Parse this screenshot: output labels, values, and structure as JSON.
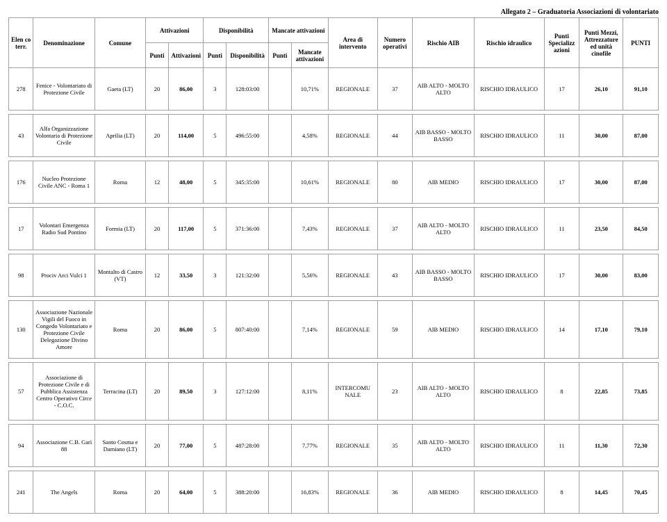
{
  "header_title": "Allegato 2 – Graduatoria Associazioni di volontariato",
  "columns": {
    "elen": "Elen\nco\nterr.",
    "denom": "Denominazione",
    "comune": "Comune",
    "attiv_group": "Attivazioni",
    "disp_group": "Disponibilità",
    "manc_group": "Mancate\nattivazioni",
    "pt1": "Punti",
    "attiv": "Attivazioni",
    "pt2": "Punti",
    "disp": "Disponibilità",
    "pt3": "Punti",
    "manc": "Mancate\nattivazioni",
    "area": "Area di\nintervento",
    "numop": "Numero\noperativi",
    "raib": "Rischio AIB",
    "ridr": "Rischio idraulico",
    "spec": "Punti\nSpecializz\nazioni",
    "mezz": "Punti Mezzi,\nAttrezzature\ned unità\ncinofile",
    "punti": "PUNTI"
  },
  "rows": [
    {
      "elen": "278",
      "denom": "Fenice - Volontariato di Protezione Civile",
      "comune": "Gaeta (LT)",
      "pt1": "20",
      "attiv": "86,00",
      "pt2": "3",
      "disp": "128:03:00",
      "pt3": "",
      "manc": "10,71%",
      "area": "REGIONALE",
      "numop": "37",
      "raib": "AIB ALTO - MOLTO ALTO",
      "ridr": "RISCHIO IDRAULICO",
      "spec": "17",
      "mezz": "26,10",
      "punti": "91,10",
      "tall": false
    },
    {
      "elen": "43",
      "denom": "Alfa Organizzazione Volontaria di Protezione Civile",
      "comune": "Aprilia (LT)",
      "pt1": "20",
      "attiv": "114,00",
      "pt2": "5",
      "disp": "496:55:00",
      "pt3": "",
      "manc": "4,58%",
      "area": "REGIONALE",
      "numop": "44",
      "raib": "AIB BASSO - MOLTO BASSO",
      "ridr": "RISCHIO IDRAULICO",
      "spec": "11",
      "mezz": "30,00",
      "punti": "87,00",
      "tall": false
    },
    {
      "elen": "176",
      "denom": "Nucleo Protezione Civile ANC - Roma 1",
      "comune": "Roma",
      "pt1": "12",
      "attiv": "48,00",
      "pt2": "5",
      "disp": "345:35:00",
      "pt3": "",
      "manc": "10,61%",
      "area": "REGIONALE",
      "numop": "80",
      "raib": "AIB MEDIO",
      "ridr": "RISCHIO IDRAULICO",
      "spec": "17",
      "mezz": "30,00",
      "punti": "87,00",
      "tall": false
    },
    {
      "elen": "17",
      "denom": "Volontari Emergenza Radio Sud Pontino",
      "comune": "Formia (LT)",
      "pt1": "20",
      "attiv": "117,00",
      "pt2": "5",
      "disp": "371:36:00",
      "pt3": "",
      "manc": "7,43%",
      "area": "REGIONALE",
      "numop": "37",
      "raib": "AIB ALTO - MOLTO ALTO",
      "ridr": "RISCHIO IDRAULICO",
      "spec": "11",
      "mezz": "23,50",
      "punti": "84,50",
      "tall": false
    },
    {
      "elen": "98",
      "denom": "Prociv Arci Vulci 1",
      "comune": "Montalto di Castro (VT)",
      "pt1": "12",
      "attiv": "33,50",
      "pt2": "3",
      "disp": "121:32:00",
      "pt3": "",
      "manc": "5,56%",
      "area": "REGIONALE",
      "numop": "43",
      "raib": "AIB BASSO - MOLTO BASSO",
      "ridr": "RISCHIO IDRAULICO",
      "spec": "17",
      "mezz": "30,00",
      "punti": "83,00",
      "tall": false
    },
    {
      "elen": "130",
      "denom": "Associazione Nazionale Vigili del Fuoco in Congedo Volontariato e Protezione Civile Delegazione Divino Amore",
      "comune": "Roma",
      "pt1": "20",
      "attiv": "86,00",
      "pt2": "5",
      "disp": "807:40:00",
      "pt3": "",
      "manc": "7,14%",
      "area": "REGIONALE",
      "numop": "59",
      "raib": "AIB MEDIO",
      "ridr": "RISCHIO IDRAULICO",
      "spec": "14",
      "mezz": "17,10",
      "punti": "79,10",
      "tall": true
    },
    {
      "elen": "57",
      "denom": "Associazione di Protezione Civile e di Pubblica Assistenza Centro Operativo Circe - C.O.C.",
      "comune": "Terracina (LT)",
      "pt1": "20",
      "attiv": "89,50",
      "pt2": "3",
      "disp": "127:12:00",
      "pt3": "",
      "manc": "8,11%",
      "area": "INTERCOMU NALE",
      "numop": "23",
      "raib": "AIB ALTO - MOLTO ALTO",
      "ridr": "RISCHIO IDRAULICO",
      "spec": "8",
      "mezz": "22,85",
      "punti": "73,85",
      "tall": true
    },
    {
      "elen": "94",
      "denom": "Associazione C.B. Garì 88",
      "comune": "Santo Cosma e Damiano (LT)",
      "pt1": "20",
      "attiv": "77,00",
      "pt2": "5",
      "disp": "487:28:00",
      "pt3": "",
      "manc": "7,77%",
      "area": "REGIONALE",
      "numop": "35",
      "raib": "AIB ALTO - MOLTO ALTO",
      "ridr": "RISCHIO IDRAULICO",
      "spec": "11",
      "mezz": "11,30",
      "punti": "72,30",
      "tall": false
    },
    {
      "elen": "241",
      "denom": "The Angels",
      "comune": "Roma",
      "pt1": "20",
      "attiv": "64,00",
      "pt2": "5",
      "disp": "388:20:00",
      "pt3": "",
      "manc": "16,83%",
      "area": "REGIONALE",
      "numop": "36",
      "raib": "AIB MEDIO",
      "ridr": "RISCHIO IDRAULICO",
      "spec": "8",
      "mezz": "14,45",
      "punti": "70,45",
      "tall": false
    }
  ]
}
